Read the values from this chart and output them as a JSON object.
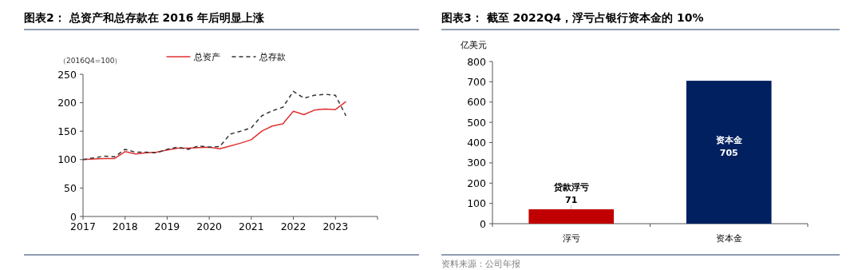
{
  "chart_data": [
    {
      "type": "line",
      "title": "图表2： 总资产和总存款在 2016 年后明显上涨",
      "ylabel": "（2016Q4=100）",
      "x": [
        2017,
        2017.25,
        2017.5,
        2017.75,
        2018,
        2018.25,
        2018.5,
        2018.75,
        2019,
        2019.25,
        2019.5,
        2019.75,
        2020,
        2020.25,
        2020.5,
        2020.75,
        2021,
        2021.25,
        2021.5,
        2021.75,
        2022,
        2022.25,
        2022.5,
        2022.75,
        2023,
        2023.25
      ],
      "series": [
        {
          "name": "总资产",
          "color": "#e03030",
          "line_style": "solid",
          "values": [
            100,
            101,
            102,
            102,
            114,
            110,
            112,
            113,
            117,
            120,
            120,
            121,
            122,
            119,
            124,
            129,
            135,
            150,
            159,
            163,
            185,
            179,
            187,
            189,
            188,
            202
          ]
        },
        {
          "name": "总存款",
          "color": "#333333",
          "line_style": "dashed",
          "values": [
            100,
            103,
            106,
            105,
            118,
            113,
            113,
            112,
            118,
            122,
            118,
            124,
            122,
            123,
            145,
            150,
            156,
            177,
            186,
            192,
            220,
            208,
            213,
            215,
            213,
            177
          ]
        }
      ],
      "xlim": [
        2017,
        2024
      ],
      "xticks": [
        2017,
        2018,
        2019,
        2020,
        2021,
        2022,
        2023,
        {
          "value": 2024,
          "label": null
        }
      ],
      "ylim": [
        0,
        250
      ],
      "yticks": [
        0,
        50,
        100,
        150,
        200,
        250
      ],
      "legend": "top",
      "grid": false,
      "marker": "none"
    },
    {
      "type": "bar",
      "title": "图表3： 截至 2022Q4，浮亏占银行资本金的 10%",
      "ylabel": "亿美元",
      "categories": [
        "浮亏",
        "资本金"
      ],
      "values": [
        71,
        705
      ],
      "colors": [
        "#c00000",
        "#002060"
      ],
      "value_labels": [
        "71",
        "705"
      ],
      "annotations": [
        "贷款浮亏",
        "资本金",
        "资料来源：公司年报"
      ],
      "ylim": [
        0,
        800
      ],
      "yticks": [
        0,
        100,
        200,
        300,
        400,
        500,
        600,
        700,
        800
      ],
      "legend": false,
      "grid": false
    }
  ]
}
